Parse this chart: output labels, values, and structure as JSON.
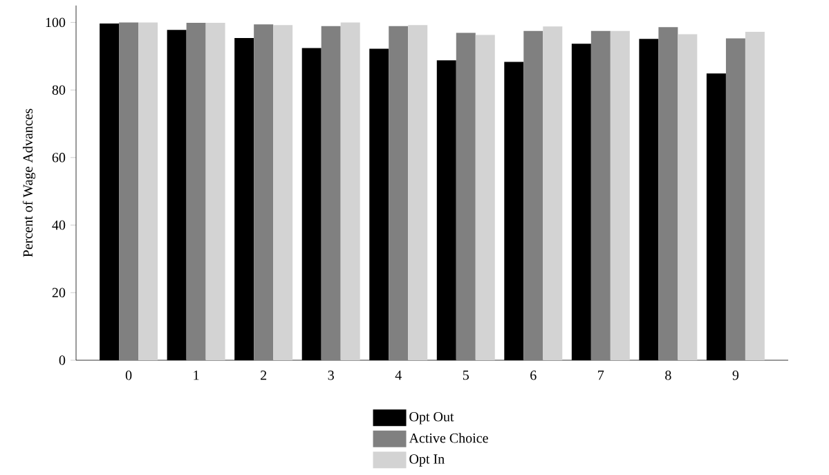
{
  "chart_data": {
    "type": "bar",
    "ylabel": "Percent of Wage Advances",
    "categories": [
      "0",
      "1",
      "2",
      "3",
      "4",
      "5",
      "6",
      "7",
      "8",
      "9"
    ],
    "series": [
      {
        "name": "Opt Out",
        "color": "#000000",
        "values": [
          99.7,
          97.8,
          95.4,
          92.4,
          92.2,
          88.8,
          88.3,
          93.7,
          95.1,
          84.9
        ]
      },
      {
        "name": "Active Choice",
        "color": "#808080",
        "values": [
          100,
          99.9,
          99.4,
          98.9,
          98.9,
          96.9,
          97.5,
          97.5,
          98.6,
          95.3
        ]
      },
      {
        "name": "Opt In",
        "color": "#d3d3d3",
        "values": [
          100,
          99.9,
          99.2,
          100,
          99.2,
          96.3,
          98.8,
          97.5,
          96.5,
          97.2
        ]
      }
    ],
    "ylim": [
      0,
      105
    ],
    "yticks": [
      0,
      20,
      40,
      60,
      80,
      100
    ],
    "grid": false,
    "legend": "bottom"
  }
}
